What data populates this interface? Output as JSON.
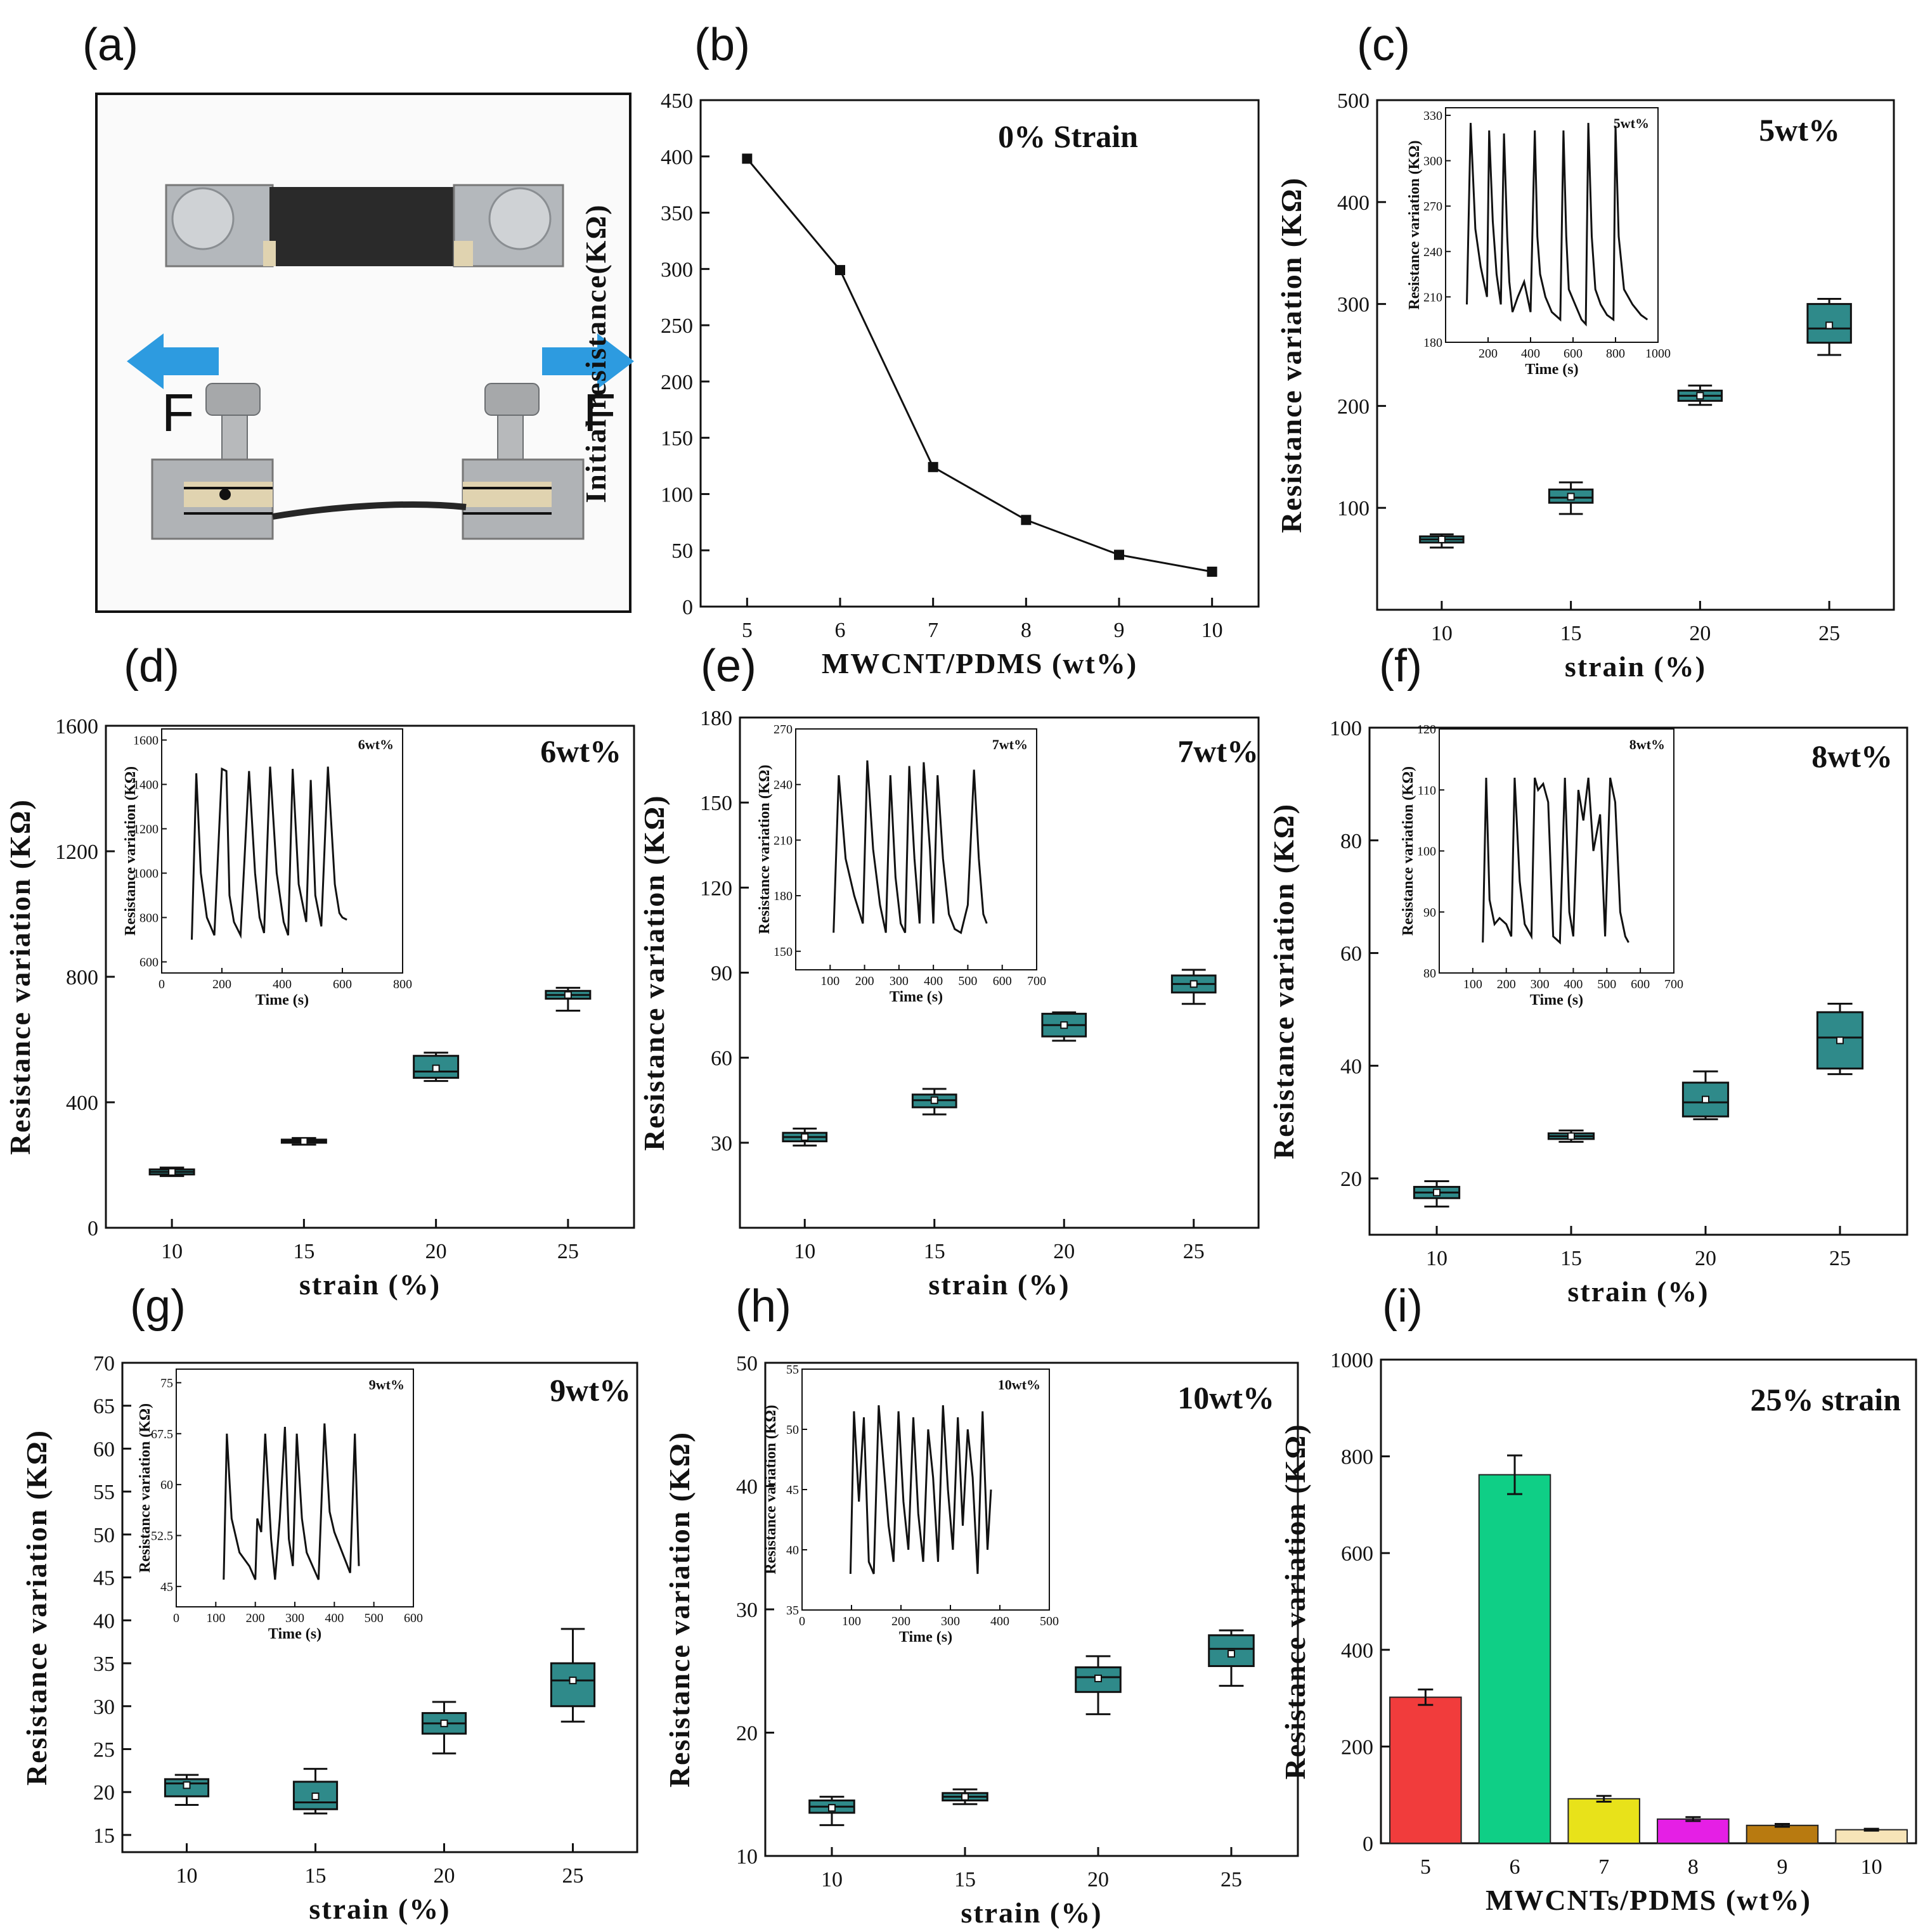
{
  "panel_labels": [
    "(a)",
    "(b)",
    "(c)",
    "(d)",
    "(e)",
    "(f)",
    "(g)",
    "(h)",
    "(i)"
  ],
  "photo": {
    "force_label_left": "F",
    "force_label_right": "F",
    "arrow_color": "#2d9be0"
  },
  "colors": {
    "box_fill": "#2f8a8a",
    "line": "#111111"
  },
  "chart_data": [
    {
      "id": "b",
      "type": "line",
      "title": "0%  Strain",
      "xlabel": "MWCNT/PDMS (wt%)",
      "ylabel": "Initial resistance(KΩ)",
      "x": [
        5,
        6,
        7,
        8,
        9,
        10
      ],
      "values": [
        398,
        299,
        124,
        77,
        46,
        31
      ],
      "xlim": [
        4.5,
        10.5
      ],
      "ylim": [
        0,
        450
      ],
      "xticks": [
        5,
        6,
        7,
        8,
        9,
        10
      ],
      "yticks": [
        0,
        50,
        100,
        150,
        200,
        250,
        300,
        350,
        400,
        450
      ],
      "grid": false
    },
    {
      "id": "c",
      "type": "box",
      "title": "5wt%",
      "xlabel": "strain (%)",
      "ylabel": "Resistance variation  (KΩ)",
      "categories": [
        "10",
        "15",
        "20",
        "25"
      ],
      "boxes": [
        {
          "min": 61,
          "q1": 66,
          "median": 69,
          "q3": 72,
          "max": 74,
          "mean": 69
        },
        {
          "min": 94,
          "q1": 105,
          "median": 110,
          "q3": 118,
          "max": 125,
          "mean": 111
        },
        {
          "min": 201,
          "q1": 205,
          "median": 210,
          "q3": 215,
          "max": 220,
          "mean": 210
        },
        {
          "min": 250,
          "q1": 262,
          "median": 276,
          "q3": 300,
          "max": 305,
          "mean": 279
        }
      ],
      "ylim": [
        0,
        500
      ],
      "yticks": [
        100,
        200,
        300,
        400,
        500
      ],
      "inset": {
        "label": "5wt%",
        "xlabel": "Time (s)",
        "ylabel": "Resistance variation (KΩ)",
        "xlim": [
          0,
          1000
        ],
        "ylim": [
          180,
          335
        ],
        "xticks": [
          200,
          400,
          600,
          800,
          1000
        ],
        "yticks": [
          180,
          210,
          240,
          270,
          300,
          330
        ],
        "x": [
          100,
          118,
          140,
          165,
          195,
          205,
          222,
          240,
          260,
          275,
          290,
          300,
          315,
          340,
          370,
          400,
          420,
          432,
          445,
          470,
          500,
          540,
          555,
          568,
          580,
          610,
          640,
          660,
          672,
          688,
          705,
          730,
          760,
          790,
          800,
          815,
          840,
          880,
          920,
          950
        ],
        "values": [
          205,
          325,
          255,
          230,
          210,
          320,
          260,
          225,
          205,
          318,
          250,
          220,
          200,
          210,
          220,
          200,
          320,
          250,
          225,
          210,
          200,
          195,
          320,
          250,
          215,
          205,
          195,
          192,
          325,
          250,
          215,
          205,
          198,
          195,
          323,
          250,
          215,
          205,
          198,
          195
        ]
      }
    },
    {
      "id": "d",
      "type": "box",
      "title": "6wt%",
      "xlabel": "strain (%)",
      "ylabel": "Resistance variation  (KΩ)",
      "categories": [
        "10",
        "15",
        "20",
        "25"
      ],
      "boxes": [
        {
          "min": 165,
          "q1": 170,
          "median": 178,
          "q3": 186,
          "max": 192,
          "mean": 178
        },
        {
          "min": 265,
          "q1": 271,
          "median": 276,
          "q3": 281,
          "max": 286,
          "mean": 276
        },
        {
          "min": 468,
          "q1": 478,
          "median": 498,
          "q3": 548,
          "max": 558,
          "mean": 508
        },
        {
          "min": 692,
          "q1": 730,
          "median": 742,
          "q3": 755,
          "max": 765,
          "mean": 742
        }
      ],
      "ylim": [
        0,
        1600
      ],
      "yticks": [
        0,
        400,
        800,
        1200,
        1600
      ],
      "inset": {
        "label": "6wt%",
        "xlabel": "Time (s)",
        "ylabel": "Resistance variation (KΩ)",
        "xlim": [
          0,
          800
        ],
        "ylim": [
          550,
          1650
        ],
        "xticks": [
          0,
          200,
          400,
          600,
          800
        ],
        "yticks": [
          600,
          800,
          1000,
          1200,
          1400,
          1600
        ],
        "x": [
          100,
          115,
          130,
          150,
          175,
          200,
          215,
          225,
          240,
          262,
          290,
          310,
          325,
          340,
          360,
          382,
          405,
          420,
          435,
          455,
          480,
          495,
          510,
          530,
          552,
          575,
          590,
          600,
          615
        ],
        "values": [
          700,
          1450,
          1000,
          800,
          720,
          1470,
          1460,
          900,
          780,
          720,
          1460,
          1000,
          800,
          730,
          1480,
          1000,
          780,
          720,
          1470,
          950,
          780,
          1420,
          900,
          760,
          1480,
          950,
          820,
          800,
          790
        ]
      }
    },
    {
      "id": "e",
      "type": "box",
      "title": "7wt%",
      "xlabel": "strain (%)",
      "ylabel": "Resistance variation  (KΩ)",
      "categories": [
        "10",
        "15",
        "20",
        "25"
      ],
      "boxes": [
        {
          "min": 29,
          "q1": 30.5,
          "median": 32,
          "q3": 33.5,
          "max": 35,
          "mean": 32
        },
        {
          "min": 40,
          "q1": 42.5,
          "median": 45,
          "q3": 47,
          "max": 49,
          "mean": 45
        },
        {
          "min": 66,
          "q1": 67.5,
          "median": 71.5,
          "q3": 75.5,
          "max": 76,
          "mean": 71.5
        },
        {
          "min": 79,
          "q1": 83,
          "median": 86,
          "q3": 89,
          "max": 91,
          "mean": 86
        }
      ],
      "ylim": [
        0,
        180
      ],
      "yticks": [
        30,
        60,
        90,
        120,
        150,
        180
      ],
      "inset": {
        "label": "7wt%",
        "xlabel": "Time (s)",
        "ylabel": "Resistance variation (KΩ)",
        "xlim": [
          0,
          700
        ],
        "ylim": [
          140,
          270
        ],
        "xticks": [
          100,
          200,
          300,
          400,
          500,
          600,
          700
        ],
        "yticks": [
          150,
          180,
          210,
          240,
          270
        ],
        "x": [
          110,
          125,
          145,
          170,
          195,
          208,
          225,
          245,
          262,
          275,
          290,
          305,
          318,
          330,
          345,
          360,
          372,
          390,
          400,
          412,
          428,
          445,
          462,
          480,
          500,
          518,
          532,
          545,
          555
        ],
        "values": [
          160,
          245,
          200,
          180,
          165,
          253,
          205,
          175,
          160,
          245,
          190,
          165,
          160,
          250,
          200,
          165,
          252,
          205,
          165,
          245,
          200,
          170,
          162,
          160,
          175,
          248,
          200,
          170,
          165
        ]
      }
    },
    {
      "id": "f",
      "type": "box",
      "title": "8wt%",
      "xlabel": "strain (%)",
      "ylabel": "Resistance variation  (KΩ)",
      "categories": [
        "10",
        "15",
        "20",
        "25"
      ],
      "boxes": [
        {
          "min": 15,
          "q1": 16.5,
          "median": 17.5,
          "q3": 18.5,
          "max": 19.5,
          "mean": 17.5
        },
        {
          "min": 26.5,
          "q1": 27,
          "median": 27.5,
          "q3": 28,
          "max": 28.5,
          "mean": 27.5
        },
        {
          "min": 30.5,
          "q1": 31,
          "median": 33.5,
          "q3": 37,
          "max": 39,
          "mean": 34
        },
        {
          "min": 38.5,
          "q1": 39.5,
          "median": 45,
          "q3": 49.5,
          "max": 51,
          "mean": 44.5
        }
      ],
      "ylim": [
        10,
        100
      ],
      "yticks": [
        20,
        40,
        60,
        80,
        100
      ],
      "inset": {
        "label": "8wt%",
        "xlabel": "Time (s)",
        "ylabel": "Resistance variation (KΩ)",
        "xlim": [
          0,
          700
        ],
        "ylim": [
          80,
          120
        ],
        "xticks": [
          100,
          200,
          300,
          400,
          500,
          600,
          700
        ],
        "yticks": [
          80,
          90,
          100,
          110,
          120
        ],
        "x": [
          130,
          140,
          150,
          165,
          180,
          200,
          215,
          225,
          240,
          255,
          275,
          285,
          295,
          310,
          325,
          340,
          360,
          375,
          388,
          400,
          415,
          430,
          445,
          460,
          480,
          495,
          510,
          525,
          540,
          555,
          565
        ],
        "values": [
          85,
          112,
          92,
          88,
          89,
          88,
          86,
          112,
          95,
          88,
          86,
          112,
          110,
          111,
          108,
          86,
          85,
          112,
          90,
          86,
          110,
          105,
          112,
          100,
          106,
          86,
          112,
          108,
          90,
          86,
          85
        ]
      }
    },
    {
      "id": "g",
      "type": "box",
      "title": "9wt%",
      "xlabel": "strain (%)",
      "ylabel": "Resistance variation  (KΩ)",
      "categories": [
        "10",
        "15",
        "20",
        "25"
      ],
      "boxes": [
        {
          "min": 18.5,
          "q1": 19.5,
          "median": 21,
          "q3": 21.5,
          "max": 22,
          "mean": 20.8
        },
        {
          "min": 17.5,
          "q1": 18,
          "median": 18.8,
          "q3": 21.2,
          "max": 22.7,
          "mean": 19.5
        },
        {
          "min": 24.5,
          "q1": 26.8,
          "median": 28,
          "q3": 29.2,
          "max": 30.5,
          "mean": 28
        },
        {
          "min": 28.2,
          "q1": 30,
          "median": 33,
          "q3": 35,
          "max": 39,
          "mean": 33
        }
      ],
      "ylim": [
        13,
        70
      ],
      "yticks": [
        15,
        20,
        25,
        30,
        35,
        40,
        45,
        50,
        55,
        60,
        65,
        70
      ],
      "inset": {
        "label": "9wt%",
        "xlabel": "Time (s)",
        "ylabel": "Resistance variation (KΩ)",
        "xlim": [
          0,
          600
        ],
        "ylim": [
          42,
          77
        ],
        "xticks": [
          0,
          100,
          200,
          300,
          400,
          500,
          600
        ],
        "yticks": [
          45.0,
          52.5,
          60.0,
          67.5,
          75.0
        ],
        "x": [
          120,
          128,
          140,
          160,
          185,
          200,
          205,
          215,
          225,
          240,
          250,
          262,
          275,
          285,
          295,
          305,
          318,
          330,
          345,
          360,
          375,
          388,
          400,
          420,
          440,
          452,
          462
        ],
        "values": [
          46,
          67.5,
          55,
          50,
          48,
          46,
          55,
          53,
          67.5,
          52,
          46,
          55,
          68.5,
          52,
          48,
          67.5,
          55,
          50,
          48,
          46,
          69,
          56,
          53,
          50,
          47,
          67.5,
          48
        ]
      }
    },
    {
      "id": "h",
      "type": "box",
      "title": "10wt%",
      "xlabel": "strain (%)",
      "ylabel": "Resistance variation  (KΩ)",
      "categories": [
        "10",
        "15",
        "20",
        "25"
      ],
      "boxes": [
        {
          "min": 12.5,
          "q1": 13.5,
          "median": 14,
          "q3": 14.5,
          "max": 14.8,
          "mean": 13.9
        },
        {
          "min": 14.2,
          "q1": 14.5,
          "median": 14.8,
          "q3": 15.1,
          "max": 15.4,
          "mean": 14.8
        },
        {
          "min": 21.5,
          "q1": 23.3,
          "median": 24.5,
          "q3": 25.3,
          "max": 26.2,
          "mean": 24.4
        },
        {
          "min": 23.8,
          "q1": 25.4,
          "median": 26.8,
          "q3": 27.9,
          "max": 28.3,
          "mean": 26.4
        }
      ],
      "ylim": [
        10,
        50
      ],
      "yticks": [
        10,
        20,
        30,
        40,
        50
      ],
      "inset": {
        "label": "10wt%",
        "xlabel": "Time (s)",
        "ylabel": "Resistance variation (KΩ)",
        "xlim": [
          0,
          500
        ],
        "ylim": [
          35,
          55
        ],
        "xticks": [
          0,
          100,
          200,
          300,
          400,
          500
        ],
        "yticks": [
          35,
          40,
          45,
          50,
          55
        ],
        "x": [
          98,
          105,
          115,
          125,
          135,
          145,
          155,
          165,
          175,
          185,
          195,
          205,
          215,
          225,
          235,
          245,
          255,
          265,
          275,
          285,
          295,
          305,
          315,
          325,
          335,
          345,
          355,
          365,
          375,
          382
        ],
        "values": [
          38,
          51.5,
          44,
          51,
          39,
          38,
          52,
          47,
          42,
          39,
          51.5,
          44,
          40,
          51,
          43,
          39,
          50,
          46,
          39,
          52,
          45,
          40,
          51,
          42,
          50,
          46,
          38,
          51.5,
          40,
          45
        ]
      }
    },
    {
      "id": "i",
      "type": "bar",
      "title": "25% strain",
      "xlabel": "MWCNTs/PDMS (wt%)",
      "ylabel": "Resistance variation  (KΩ)",
      "categories": [
        "5",
        "6",
        "7",
        "8",
        "9",
        "10"
      ],
      "values": [
        302,
        762,
        92,
        50,
        37,
        28
      ],
      "errors": [
        16,
        40,
        6,
        4,
        3,
        2
      ],
      "colors": [
        "#f13c3c",
        "#0fcf86",
        "#e8e21a",
        "#e51fe5",
        "#b87a10",
        "#f7e4b8"
      ],
      "ylim": [
        0,
        1000
      ],
      "yticks": [
        0,
        200,
        400,
        600,
        800,
        1000
      ],
      "grid": false
    }
  ]
}
